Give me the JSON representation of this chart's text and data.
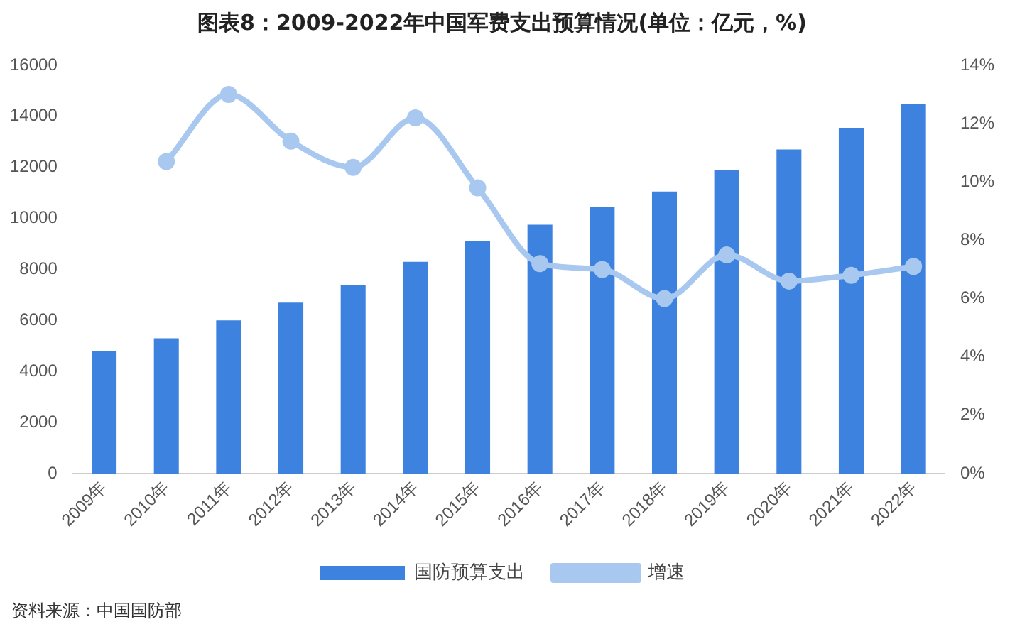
{
  "chart_data": {
    "type": "bar",
    "title": "图表8：2009-2022年中国军费支出预算情况(单位：亿元，%)",
    "categories": [
      "2009年",
      "2010年",
      "2011年",
      "2012年",
      "2013年",
      "2014年",
      "2015年",
      "2016年",
      "2017年",
      "2018年",
      "2019年",
      "2020年",
      "2021年",
      "2022年"
    ],
    "series": [
      {
        "name": "国防预算支出",
        "color": "#3d82de",
        "values": [
          4800,
          5300,
          6000,
          6700,
          7400,
          8300,
          9100,
          9750,
          10450,
          11050,
          11900,
          12700,
          13550,
          14500
        ]
      },
      {
        "name": "增速",
        "type": "line",
        "axis": "y2",
        "color": "#a8c8f0",
        "marker": "circle",
        "values": [
          null,
          10.7,
          13.0,
          11.4,
          10.5,
          12.2,
          9.8,
          7.2,
          7.0,
          6.0,
          7.5,
          6.6,
          6.8,
          7.1
        ]
      }
    ],
    "ylim": [
      0,
      16000
    ],
    "yticks": [
      0,
      2000,
      4000,
      6000,
      8000,
      10000,
      12000,
      14000,
      16000
    ],
    "y2lim": [
      0,
      14
    ],
    "y2ticks": [
      {
        "value": 0,
        "label": "0%"
      },
      {
        "value": 2,
        "label": "2%"
      },
      {
        "value": 4,
        "label": "4%"
      },
      {
        "value": 6,
        "label": "6%"
      },
      {
        "value": 8,
        "label": "8%"
      },
      {
        "value": 10,
        "label": "10%"
      },
      {
        "value": 12,
        "label": "12%"
      },
      {
        "value": 14,
        "label": "14%"
      }
    ],
    "grid": false,
    "legend": "bottom",
    "annotations": [
      "资料来源：中国国防部"
    ]
  }
}
